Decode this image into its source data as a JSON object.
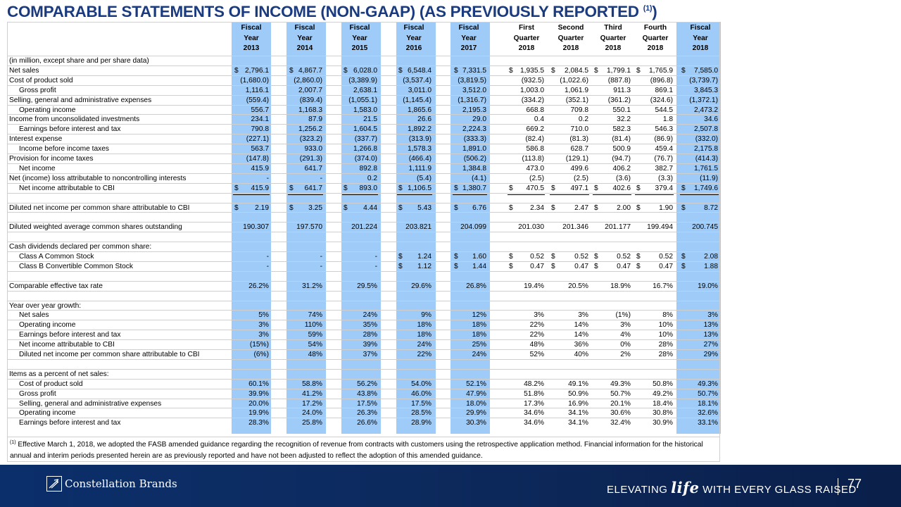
{
  "title": "COMPARABLE STATEMENTS OF INCOME (NON-GAAP) (AS PREVIOUSLY REPORTED",
  "title_sup": "(1)",
  "title_end": ")",
  "columns": [
    [
      "Fiscal",
      "Year",
      "2013"
    ],
    [
      "Fiscal",
      "Year",
      "2014"
    ],
    [
      "Fiscal",
      "Year",
      "2015"
    ],
    [
      "Fiscal",
      "Year",
      "2016"
    ],
    [
      "Fiscal",
      "Year",
      "2017"
    ],
    [
      "First",
      "Quarter",
      "2018"
    ],
    [
      "Second",
      "Quarter",
      "2018"
    ],
    [
      "Third",
      "Quarter",
      "2018"
    ],
    [
      "Fourth",
      "Quarter",
      "2018"
    ],
    [
      "Fiscal",
      "Year",
      "2018"
    ]
  ],
  "rows": [
    {
      "label": "(in million, except share and per share data)",
      "indent": 0,
      "values": []
    },
    {
      "label": "Net sales",
      "indent": 0,
      "dollar": [
        1,
        1,
        1,
        1,
        1,
        1,
        1,
        1,
        1,
        1
      ],
      "values": [
        "2,796.1",
        "4,867.7",
        "6,028.0",
        "6,548.4",
        "7,331.5",
        "1,935.5",
        "2,084.5",
        "1,799.1",
        "1,765.9",
        "7,585.0"
      ]
    },
    {
      "label": "Cost of product sold",
      "indent": 0,
      "values": [
        "(1,680.0)",
        "(2,860.0)",
        "(3,389.9)",
        "(3,537.4)",
        "(3,819.5)",
        "(932.5)",
        "(1,022.6)",
        "(887.8)",
        "(896.8)",
        "(3,739.7)"
      ]
    },
    {
      "label": "Gross profit",
      "indent": 1,
      "values": [
        "1,116.1",
        "2,007.7",
        "2,638.1",
        "3,011.0",
        "3,512.0",
        "1,003.0",
        "1,061.9",
        "911.3",
        "869.1",
        "3,845.3"
      ]
    },
    {
      "label": "Selling, general and administrative expenses",
      "indent": 0,
      "values": [
        "(559.4)",
        "(839.4)",
        "(1,055.1)",
        "(1,145.4)",
        "(1,316.7)",
        "(334.2)",
        "(352.1)",
        "(361.2)",
        "(324.6)",
        "(1,372.1)"
      ]
    },
    {
      "label": "Operating income",
      "indent": 1,
      "values": [
        "556.7",
        "1,168.3",
        "1,583.0",
        "1,865.6",
        "2,195.3",
        "668.8",
        "709.8",
        "550.1",
        "544.5",
        "2,473.2"
      ]
    },
    {
      "label": "Income from unconsolidated investments",
      "indent": 0,
      "values": [
        "234.1",
        "87.9",
        "21.5",
        "26.6",
        "29.0",
        "0.4",
        "0.2",
        "32.2",
        "1.8",
        "34.6"
      ]
    },
    {
      "label": "Earnings before interest and tax",
      "indent": 1,
      "values": [
        "790.8",
        "1,256.2",
        "1,604.5",
        "1,892.2",
        "2,224.3",
        "669.2",
        "710.0",
        "582.3",
        "546.3",
        "2,507.8"
      ]
    },
    {
      "label": "Interest expense",
      "indent": 0,
      "values": [
        "(227.1)",
        "(323.2)",
        "(337.7)",
        "(313.9)",
        "(333.3)",
        "(82.4)",
        "(81.3)",
        "(81.4)",
        "(86.9)",
        "(332.0)"
      ]
    },
    {
      "label": "Income before income taxes",
      "indent": 1,
      "values": [
        "563.7",
        "933.0",
        "1,266.8",
        "1,578.3",
        "1,891.0",
        "586.8",
        "628.7",
        "500.9",
        "459.4",
        "2,175.8"
      ]
    },
    {
      "label": "Provision for income taxes",
      "indent": 0,
      "values": [
        "(147.8)",
        "(291.3)",
        "(374.0)",
        "(466.4)",
        "(506.2)",
        "(113.8)",
        "(129.1)",
        "(94.7)",
        "(76.7)",
        "(414.3)"
      ]
    },
    {
      "label": "Net income",
      "indent": 1,
      "values": [
        "415.9",
        "641.7",
        "892.8",
        "1,111.9",
        "1,384.8",
        "473.0",
        "499.6",
        "406.2",
        "382.7",
        "1,761.5"
      ]
    },
    {
      "label": "Net (income) loss attributable to noncontrolling interests",
      "indent": 0,
      "values": [
        "-",
        "-",
        "0.2",
        "(5.4)",
        "(4.1)",
        "(2.5)",
        "(2.5)",
        "(3.6)",
        "(3.3)",
        "(11.9)"
      ]
    },
    {
      "label": "Net income attributable to CBI",
      "indent": 1,
      "dollar": [
        1,
        1,
        1,
        1,
        1,
        1,
        1,
        1,
        1,
        1
      ],
      "double": true,
      "values": [
        "415.9",
        "641.7",
        "893.0",
        "1,106.5",
        "1,380.7",
        "470.5",
        "497.1",
        "402.6",
        "379.4",
        "1,749.6"
      ]
    },
    {
      "label": "",
      "indent": 0,
      "values": []
    },
    {
      "label": "Diluted net income per common share attributable to CBI",
      "indent": 0,
      "dollar": [
        1,
        1,
        1,
        1,
        1,
        1,
        1,
        1,
        1,
        1
      ],
      "values": [
        "2.19",
        "3.25",
        "4.44",
        "5.43",
        "6.76",
        "2.34",
        "2.47",
        "2.00",
        "1.90",
        "8.72"
      ]
    },
    {
      "label": "",
      "indent": 0,
      "values": []
    },
    {
      "label": "Diluted weighted average common shares outstanding",
      "indent": 0,
      "values": [
        "190.307",
        "197.570",
        "201.224",
        "203.821",
        "204.099",
        "201.030",
        "201.346",
        "201.177",
        "199.494",
        "200.745"
      ]
    },
    {
      "label": "",
      "indent": 0,
      "values": []
    },
    {
      "label": "Cash dividends declared per common share:",
      "indent": 0,
      "values": []
    },
    {
      "label": "Class A Common Stock",
      "indent": 1,
      "dollar": [
        0,
        0,
        0,
        1,
        1,
        1,
        1,
        1,
        1,
        1
      ],
      "values": [
        "-",
        "-",
        "-",
        "1.24",
        "1.60",
        "0.52",
        "0.52",
        "0.52",
        "0.52",
        "2.08"
      ]
    },
    {
      "label": "Class B Convertible Common Stock",
      "indent": 1,
      "dollar": [
        0,
        0,
        0,
        1,
        1,
        1,
        1,
        1,
        1,
        1
      ],
      "values": [
        "-",
        "-",
        "-",
        "1.12",
        "1.44",
        "0.47",
        "0.47",
        "0.47",
        "0.47",
        "1.88"
      ]
    },
    {
      "label": "",
      "indent": 0,
      "values": []
    },
    {
      "label": "Comparable effective tax rate",
      "indent": 0,
      "values": [
        "26.2%",
        "31.2%",
        "29.5%",
        "29.6%",
        "26.8%",
        "19.4%",
        "20.5%",
        "18.9%",
        "16.7%",
        "19.0%"
      ]
    },
    {
      "label": "",
      "indent": 0,
      "values": []
    },
    {
      "label": "Year over year growth:",
      "indent": 0,
      "values": []
    },
    {
      "label": "Net sales",
      "indent": 1,
      "values": [
        "5%",
        "74%",
        "24%",
        "9%",
        "12%",
        "3%",
        "3%",
        "(1%)",
        "8%",
        "3%"
      ]
    },
    {
      "label": "Operating income",
      "indent": 1,
      "values": [
        "3%",
        "110%",
        "35%",
        "18%",
        "18%",
        "22%",
        "14%",
        "3%",
        "10%",
        "13%"
      ]
    },
    {
      "label": "Earnings before interest and tax",
      "indent": 1,
      "values": [
        "3%",
        "59%",
        "28%",
        "18%",
        "18%",
        "22%",
        "14%",
        "4%",
        "10%",
        "13%"
      ]
    },
    {
      "label": "Net income attributable to CBI",
      "indent": 1,
      "values": [
        "(15%)",
        "54%",
        "39%",
        "24%",
        "25%",
        "48%",
        "36%",
        "0%",
        "28%",
        "27%"
      ]
    },
    {
      "label": "Diluted net income per common share attributable to CBI",
      "indent": 1,
      "values": [
        "(6%)",
        "48%",
        "37%",
        "22%",
        "24%",
        "52%",
        "40%",
        "2%",
        "28%",
        "29%"
      ]
    },
    {
      "label": "",
      "indent": 0,
      "values": []
    },
    {
      "label": "Items as a percent of net sales:",
      "indent": 0,
      "values": []
    },
    {
      "label": "Cost of product sold",
      "indent": 1,
      "values": [
        "60.1%",
        "58.8%",
        "56.2%",
        "54.0%",
        "52.1%",
        "48.2%",
        "49.1%",
        "49.3%",
        "50.8%",
        "49.3%"
      ]
    },
    {
      "label": "Gross profit",
      "indent": 1,
      "values": [
        "39.9%",
        "41.2%",
        "43.8%",
        "46.0%",
        "47.9%",
        "51.8%",
        "50.9%",
        "50.7%",
        "49.2%",
        "50.7%"
      ]
    },
    {
      "label": "Selling, general and administrative expenses",
      "indent": 1,
      "values": [
        "20.0%",
        "17.2%",
        "17.5%",
        "17.5%",
        "18.0%",
        "17.3%",
        "16.9%",
        "20.1%",
        "18.4%",
        "18.1%"
      ]
    },
    {
      "label": "Operating income",
      "indent": 1,
      "values": [
        "19.9%",
        "24.0%",
        "26.3%",
        "28.5%",
        "29.9%",
        "34.6%",
        "34.1%",
        "30.6%",
        "30.8%",
        "32.6%"
      ]
    },
    {
      "label": "Earnings before interest and tax",
      "indent": 1,
      "values": [
        "28.3%",
        "25.8%",
        "26.6%",
        "28.9%",
        "30.3%",
        "34.6%",
        "34.1%",
        "32.4%",
        "30.9%",
        "33.1%"
      ]
    }
  ],
  "footnote_marker": "(1)",
  "footnote": "Effective March 1, 2018, we adopted the FASB amended guidance regarding the recognition of revenue from contracts with customers using the retrospective application method. Financial information for the historical annual and interim periods presented herein are as previously reported and have not been adjusted to reflect the adoption of this amended guidance.",
  "footer": {
    "brand": "Constellation Brands",
    "tagline_pre": "ELEVATING ",
    "tagline_life": "life",
    "tagline_post": " WITH EVERY GLASS RAISED",
    "page": "77"
  }
}
